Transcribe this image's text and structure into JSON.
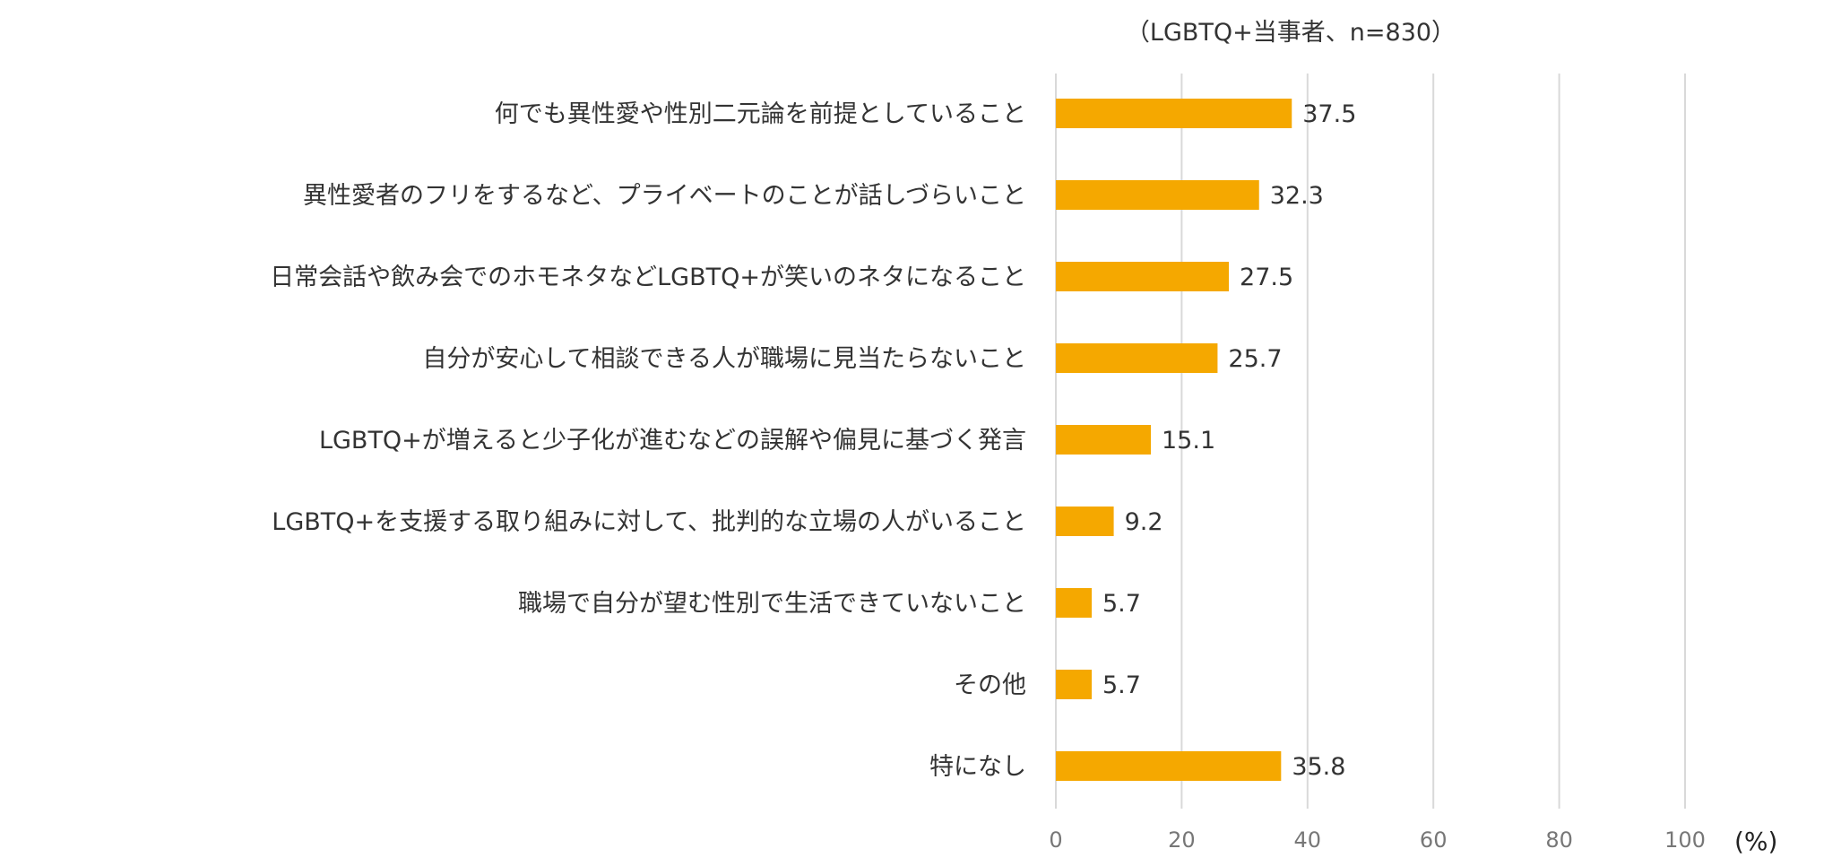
{
  "chart_data": {
    "type": "bar",
    "orientation": "horizontal",
    "subtitle": "（LGBTQ+当事者、n=830）",
    "unit_label": "(%)",
    "categories": [
      "何でも異性愛や性別二元論を前提としていること",
      "異性愛者のフリをするなど、プライベートのことが話しづらいこと",
      "日常会話や飲み会でのホモネタなどLGBTQ+が笑いのネタになること",
      "自分が安心して相談できる人が職場に見当たらないこと",
      "LGBTQ+が増えると少子化が進むなどの誤解や偏見に基づく発言",
      "LGBTQ+を支援する取り組みに対して、批判的な立場の人がいること",
      "職場で自分が望む性別で生活できていないこと",
      "その他",
      "特になし"
    ],
    "values": [
      37.5,
      32.3,
      27.5,
      25.7,
      15.1,
      9.2,
      5.7,
      5.7,
      35.8
    ],
    "data_labels": [
      "37.5",
      "32.3",
      "27.5",
      "25.7",
      "15.1",
      "9.2",
      "5.7",
      "5.7",
      "35.8"
    ],
    "xlim": [
      0,
      100
    ],
    "xticks": [
      0,
      20,
      40,
      60,
      80,
      100
    ],
    "xtick_labels": [
      "0",
      "20",
      "40",
      "60",
      "80",
      "100"
    ],
    "grid": "vertical",
    "legend": "none",
    "bar_color": "#F5A800",
    "grid_color": "#D9D9D9"
  }
}
